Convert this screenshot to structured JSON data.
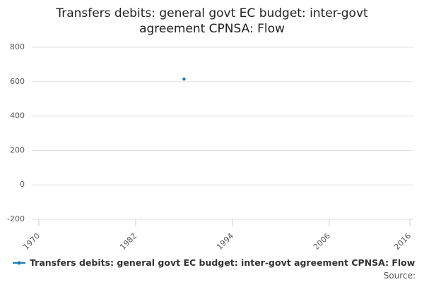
{
  "chart_data": {
    "type": "line",
    "title": "Transfers debits: general govt EC budget: inter-govt agreement CPNSA: Flow",
    "x": [
      1988
    ],
    "series": [
      {
        "name": "Transfers debits: general govt EC budget: inter-govt agreement CPNSA: Flow",
        "color": "#1a7ab8",
        "values": [
          615
        ]
      }
    ],
    "xlim": [
      1970,
      2016
    ],
    "xticks": [
      1970,
      1982,
      1994,
      2006,
      2016
    ],
    "ylim": [
      -200,
      800
    ],
    "yticks": [
      -200,
      0,
      200,
      400,
      600,
      800
    ],
    "grid": true,
    "legend": "bottom",
    "source": "Source:"
  }
}
